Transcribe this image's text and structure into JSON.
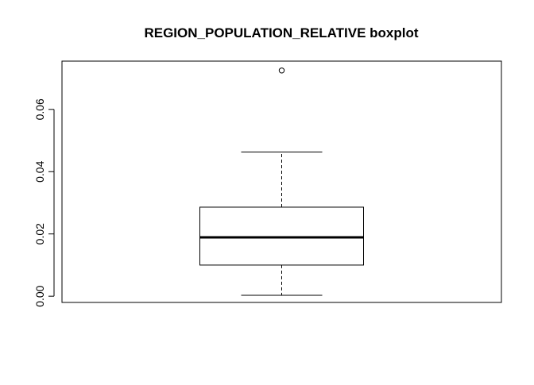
{
  "chart_data": {
    "type": "boxplot",
    "title": "REGION_POPULATION_RELATIVE boxplot",
    "xlabel": "",
    "ylabel": "",
    "ylim": [
      -0.002,
      0.0755
    ],
    "yticks": [
      0.0,
      0.02,
      0.04,
      0.06
    ],
    "ytick_labels": [
      "0.00",
      "0.02",
      "0.04",
      "0.06"
    ],
    "grid": false,
    "box": {
      "whisker_low": 0.0003,
      "q1": 0.01,
      "median": 0.0189,
      "q3": 0.0286,
      "whisker_high": 0.0463,
      "outliers": [
        0.0725
      ]
    },
    "colors": {
      "stroke": "#000000",
      "fill": "#ffffff"
    }
  }
}
